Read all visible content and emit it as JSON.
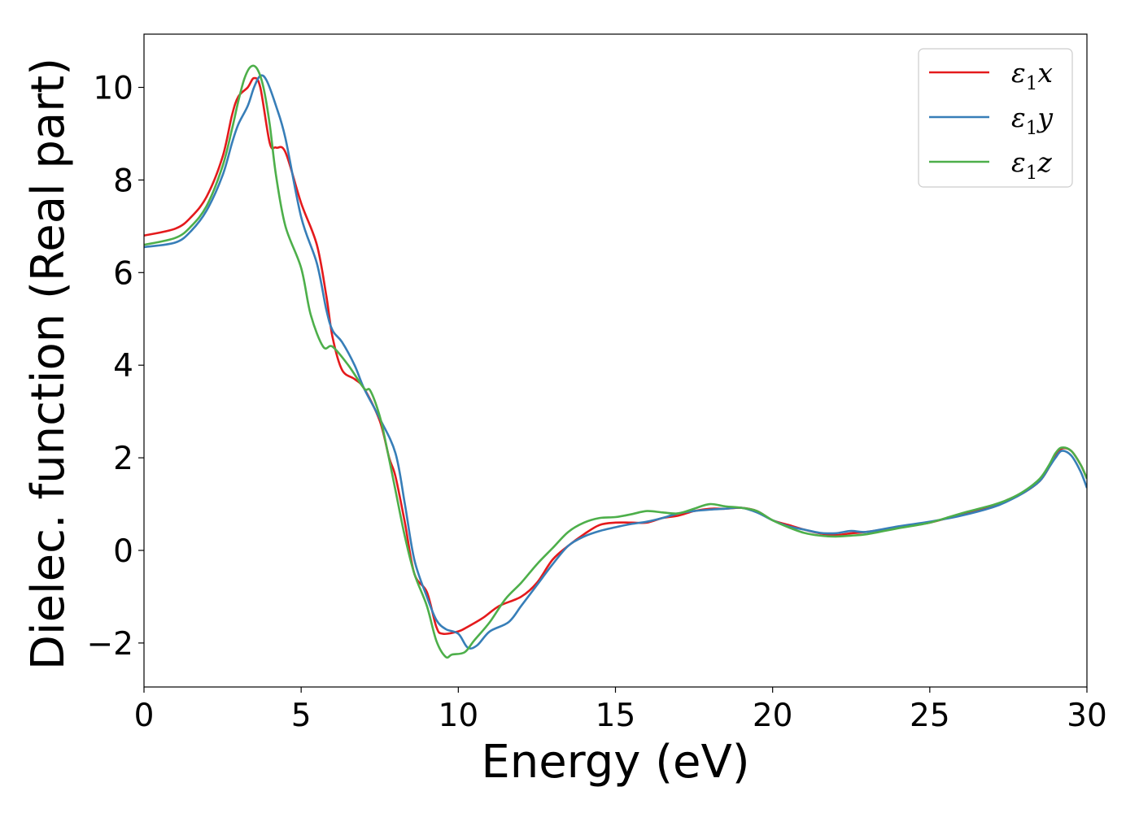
{
  "chart_data": {
    "type": "line",
    "xlabel": "Energy (eV)",
    "ylabel": "Dielec. function (Real part)",
    "xlim": [
      0,
      30
    ],
    "ylim": [
      -2.95,
      11.15
    ],
    "xticks": [
      0,
      5,
      10,
      15,
      20,
      25,
      30
    ],
    "yticks": [
      -2,
      0,
      2,
      4,
      6,
      8,
      10
    ],
    "xtick_labels": [
      "0",
      "5",
      "10",
      "15",
      "20",
      "25",
      "30"
    ],
    "ytick_labels": [
      "−2",
      "0",
      "2",
      "4",
      "6",
      "8",
      "10"
    ],
    "grid": false,
    "legend_position": "upper-right",
    "series": [
      {
        "name": "ε₁x",
        "legend_main": "ε",
        "legend_sub": "1",
        "legend_var": "x",
        "color": "#e41a1c",
        "x": [
          0,
          1,
          1.5,
          2,
          2.5,
          2.8,
          3.0,
          3.3,
          3.5,
          3.7,
          4.0,
          4.2,
          4.5,
          5.0,
          5.5,
          5.8,
          6.0,
          6.3,
          6.7,
          7.0,
          7.5,
          7.8,
          8.0,
          8.3,
          8.6,
          9.0,
          9.3,
          9.5,
          10.0,
          10.3,
          10.8,
          11.3,
          12.0,
          12.5,
          13.0,
          13.5,
          14.0,
          14.5,
          15.0,
          15.5,
          16.0,
          16.5,
          17.0,
          17.5,
          18.0,
          18.5,
          19.0,
          19.5,
          20.0,
          20.5,
          21.0,
          21.5,
          22.0,
          22.5,
          23.0,
          24.0,
          25.0,
          26.0,
          27.0,
          27.5,
          28.0,
          28.5,
          28.8,
          29.0,
          29.2,
          29.5,
          29.8,
          30.0
        ],
        "y": [
          6.8,
          6.95,
          7.2,
          7.65,
          8.5,
          9.4,
          9.8,
          10.0,
          10.2,
          10.0,
          8.8,
          8.7,
          8.6,
          7.5,
          6.6,
          5.5,
          4.6,
          3.9,
          3.7,
          3.5,
          2.8,
          2.0,
          1.6,
          0.6,
          -0.5,
          -0.9,
          -1.65,
          -1.8,
          -1.75,
          -1.65,
          -1.45,
          -1.2,
          -1.0,
          -0.7,
          -0.2,
          0.1,
          0.35,
          0.55,
          0.6,
          0.6,
          0.6,
          0.7,
          0.75,
          0.85,
          0.9,
          0.9,
          0.92,
          0.85,
          0.65,
          0.55,
          0.45,
          0.37,
          0.33,
          0.37,
          0.4,
          0.5,
          0.6,
          0.78,
          0.95,
          1.1,
          1.25,
          1.5,
          1.8,
          2.05,
          2.2,
          2.15,
          1.85,
          1.55
        ]
      },
      {
        "name": "ε₁y",
        "legend_main": "ε",
        "legend_sub": "1",
        "legend_var": "y",
        "color": "#377eb8",
        "x": [
          0,
          1,
          1.5,
          2,
          2.5,
          2.8,
          3.0,
          3.3,
          3.5,
          3.7,
          3.9,
          4.2,
          4.5,
          5.0,
          5.5,
          5.8,
          6.0,
          6.3,
          6.7,
          7.0,
          7.5,
          8.0,
          8.3,
          8.6,
          9.0,
          9.3,
          9.6,
          10.0,
          10.3,
          10.6,
          11.0,
          11.6,
          12.0,
          12.5,
          13.0,
          13.5,
          14.0,
          14.5,
          15.0,
          15.5,
          16.0,
          16.5,
          17.0,
          17.5,
          18.0,
          18.5,
          19.0,
          19.5,
          20.0,
          20.5,
          21.0,
          21.5,
          22.0,
          22.5,
          23.0,
          24.0,
          25.0,
          26.0,
          27.0,
          27.5,
          28.0,
          28.5,
          28.8,
          29.0,
          29.2,
          29.5,
          29.8,
          30.0
        ],
        "y": [
          6.55,
          6.65,
          6.9,
          7.35,
          8.1,
          8.8,
          9.2,
          9.6,
          10.0,
          10.25,
          10.15,
          9.6,
          8.9,
          7.2,
          6.2,
          5.2,
          4.75,
          4.5,
          4.0,
          3.5,
          2.85,
          2.1,
          1.0,
          -0.2,
          -1.0,
          -1.5,
          -1.7,
          -1.8,
          -2.1,
          -2.05,
          -1.75,
          -1.55,
          -1.2,
          -0.75,
          -0.3,
          0.1,
          0.3,
          0.42,
          0.5,
          0.57,
          0.62,
          0.7,
          0.8,
          0.85,
          0.88,
          0.9,
          0.92,
          0.82,
          0.65,
          0.52,
          0.45,
          0.38,
          0.37,
          0.42,
          0.4,
          0.52,
          0.62,
          0.75,
          0.93,
          1.07,
          1.25,
          1.5,
          1.8,
          2.0,
          2.15,
          2.05,
          1.7,
          1.35
        ]
      },
      {
        "name": "ε₁z",
        "legend_main": "ε",
        "legend_sub": "1",
        "legend_var": "z",
        "color": "#4daf4a",
        "x": [
          0,
          1,
          1.5,
          2,
          2.5,
          2.8,
          3.0,
          3.2,
          3.4,
          3.6,
          3.8,
          4.0,
          4.2,
          4.5,
          5.0,
          5.3,
          5.7,
          6.0,
          6.5,
          7.0,
          7.2,
          7.5,
          7.7,
          8.0,
          8.3,
          8.6,
          9.0,
          9.3,
          9.6,
          9.8,
          10.2,
          10.5,
          11.0,
          11.5,
          12.0,
          12.5,
          13.0,
          13.5,
          14.0,
          14.5,
          15.0,
          15.5,
          16.0,
          16.5,
          17.0,
          17.5,
          18.0,
          18.5,
          19.0,
          19.5,
          20.0,
          20.5,
          21.0,
          21.5,
          22.0,
          22.5,
          23.0,
          24.0,
          25.0,
          26.0,
          27.0,
          27.5,
          28.0,
          28.5,
          28.8,
          29.0,
          29.2,
          29.5,
          29.8,
          30.0
        ],
        "y": [
          6.6,
          6.75,
          7.0,
          7.45,
          8.3,
          9.1,
          9.7,
          10.2,
          10.45,
          10.4,
          10.0,
          9.2,
          8.1,
          7.0,
          6.1,
          5.1,
          4.4,
          4.4,
          4.0,
          3.5,
          3.45,
          2.9,
          2.3,
          1.3,
          0.3,
          -0.5,
          -1.2,
          -1.95,
          -2.3,
          -2.25,
          -2.2,
          -1.95,
          -1.55,
          -1.05,
          -0.7,
          -0.3,
          0.05,
          0.4,
          0.6,
          0.7,
          0.72,
          0.78,
          0.85,
          0.82,
          0.8,
          0.9,
          1.0,
          0.95,
          0.92,
          0.85,
          0.65,
          0.5,
          0.38,
          0.32,
          0.3,
          0.32,
          0.35,
          0.48,
          0.6,
          0.8,
          0.98,
          1.1,
          1.28,
          1.55,
          1.85,
          2.1,
          2.22,
          2.15,
          1.85,
          1.55
        ]
      }
    ]
  }
}
